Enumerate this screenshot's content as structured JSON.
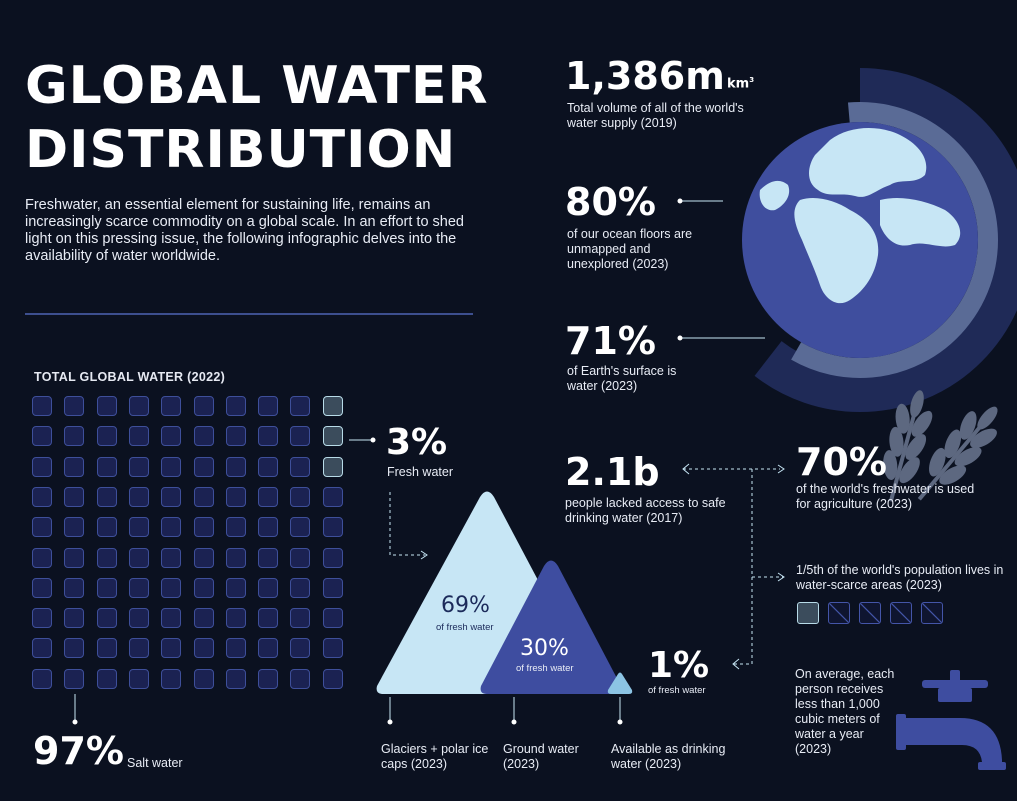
{
  "header": {
    "title_line1": "GLOBAL WATER",
    "title_line2": "DISTRIBUTION",
    "intro": "Freshwater, an essential element for sustaining life, remains an increasingly scarce commodity on a global scale. In an effort to shed light on this pressing issue, the following infographic delves into the availability of water worldwide."
  },
  "grid": {
    "title": "TOTAL GLOBAL WATER (2022)",
    "total_cells": 100,
    "fresh_cells": 3,
    "salt_pct": "97%",
    "salt_label": "Salt water",
    "fresh_pct": "3%",
    "fresh_label": "Fresh water"
  },
  "mountains": {
    "glaciers_pct": "69%",
    "glaciers_sub": "of fresh water",
    "ground_pct": "30%",
    "ground_sub": "of fresh water",
    "drinking_pct": "1%",
    "drinking_sub": "of fresh water",
    "glaciers_caption": "Glaciers + polar ice caps (2023)",
    "ground_caption": "Ground water (2023)",
    "drinking_caption": "Available as drinking water (2023)"
  },
  "stats": {
    "volume_num": "1,386m",
    "volume_unit": "km",
    "volume_sup": "3",
    "volume_label": "Total volume of all of the world's water supply (2019)",
    "ocean_pct": "80%",
    "ocean_label": "of our ocean floors are unmapped and unexplored (2023)",
    "surface_pct": "71%",
    "surface_label": "of Earth's surface is water (2023)",
    "access_num": "2.1b",
    "access_label": "people lacked access to safe drinking water (2017)",
    "agri_pct": "70%",
    "agri_label": "of the world's freshwater is used for agriculture (2023)",
    "scarce_label": "1/5th of the world's population lives in water-scarce areas (2023)",
    "avg_label": "On average, each person receives less than 1,000 cubic meters of water a year (2023)"
  },
  "colors": {
    "background": "#0b1120",
    "accent_light": "#c7e6f5",
    "accent_dark": "#3e4da0",
    "cell_border": "#3e4f9a"
  },
  "icons": [
    "globe-icon",
    "wheat-icon",
    "faucet-icon"
  ]
}
